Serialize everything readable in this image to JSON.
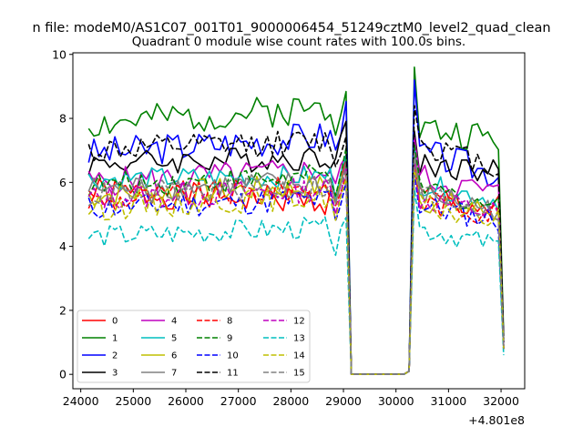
{
  "figure": {
    "suptitle": "n file: modeM0/AS1C07_001T01_9000006454_51249cztM0_level2_quad_clean",
    "offset_label": "+4.801e8"
  },
  "chart_data": {
    "type": "line",
    "title": "Quadrant 0 module wise count rates with 100.0s bins.",
    "xlabel": "",
    "ylabel": "",
    "xlim": [
      23850,
      32450
    ],
    "ylim": [
      -0.45,
      10.05
    ],
    "xticks": [
      24000,
      25000,
      26000,
      27000,
      28000,
      29000,
      30000,
      31000,
      32000
    ],
    "yticks": [
      0,
      2,
      4,
      6,
      8,
      10
    ],
    "x_offset": "+4.801e8",
    "bin_size_s": 100.0,
    "grid": false,
    "legend": {
      "placement": "lower-left",
      "columns": 4
    },
    "time_segments": [
      {
        "start": 24150,
        "end": 29050,
        "step": 100
      },
      {
        "start": 30350,
        "end": 32050,
        "step": 100
      }
    ],
    "gap_x": [
      29150,
      29250,
      30150,
      30250
    ],
    "gap_y": [
      0.0,
      0.0,
      0.0,
      0.1
    ],
    "series": [
      {
        "name": "0",
        "color": "#ff0000",
        "dash": "solid",
        "base1": 5.7,
        "base2": 5.6,
        "trend1": -0.3,
        "trend2": -0.5,
        "amp": 0.45,
        "peak1": 6.7,
        "peak2": 7.0,
        "end": 0.8,
        "seed": 1
      },
      {
        "name": "1",
        "color": "#008000",
        "dash": "solid",
        "base1": 7.8,
        "base2": 7.7,
        "trend1": 0.6,
        "trend2": -0.4,
        "amp": 0.5,
        "peak1": 8.9,
        "peak2": 9.6,
        "end": 1.2,
        "seed": 2
      },
      {
        "name": "2",
        "color": "#0000ff",
        "dash": "solid",
        "base1": 6.9,
        "base2": 7.0,
        "trend1": 0.6,
        "trend2": -0.8,
        "amp": 0.5,
        "peak1": 8.3,
        "peak2": 9.2,
        "end": 1.0,
        "seed": 3
      },
      {
        "name": "3",
        "color": "#000000",
        "dash": "solid",
        "base1": 6.6,
        "base2": 6.6,
        "trend1": 0.2,
        "trend2": -0.3,
        "amp": 0.4,
        "peak1": 7.9,
        "peak2": 7.6,
        "end": 1.0,
        "seed": 4
      },
      {
        "name": "4",
        "color": "#bf00bf",
        "dash": "solid",
        "base1": 6.0,
        "base2": 6.2,
        "trend1": 0.4,
        "trend2": -0.6,
        "amp": 0.45,
        "peak1": 7.0,
        "peak2": 7.4,
        "end": 0.9,
        "seed": 5
      },
      {
        "name": "5",
        "color": "#00bfbf",
        "dash": "solid",
        "base1": 6.1,
        "base2": 6.0,
        "trend1": 0.1,
        "trend2": -0.6,
        "amp": 0.35,
        "peak1": 6.8,
        "peak2": 7.1,
        "end": 0.8,
        "seed": 6
      },
      {
        "name": "6",
        "color": "#bfbf00",
        "dash": "solid",
        "base1": 5.6,
        "base2": 5.5,
        "trend1": 0.3,
        "trend2": -0.5,
        "amp": 0.4,
        "peak1": 6.6,
        "peak2": 6.8,
        "end": 0.8,
        "seed": 7
      },
      {
        "name": "7",
        "color": "#808080",
        "dash": "solid",
        "base1": 5.8,
        "base2": 5.7,
        "trend1": 0.2,
        "trend2": -0.6,
        "amp": 0.4,
        "peak1": 6.5,
        "peak2": 6.9,
        "end": 0.8,
        "seed": 8
      },
      {
        "name": "8",
        "color": "#ff0000",
        "dash": "dashed",
        "base1": 5.4,
        "base2": 5.4,
        "trend1": 0.5,
        "trend2": -0.4,
        "amp": 0.4,
        "peak1": 6.3,
        "peak2": 6.6,
        "end": 0.8,
        "seed": 9
      },
      {
        "name": "9",
        "color": "#008000",
        "dash": "dashed",
        "base1": 5.9,
        "base2": 5.9,
        "trend1": 0.3,
        "trend2": -0.7,
        "amp": 0.4,
        "peak1": 6.9,
        "peak2": 7.2,
        "end": 0.9,
        "seed": 10
      },
      {
        "name": "10",
        "color": "#0000ff",
        "dash": "dashed",
        "base1": 5.2,
        "base2": 5.3,
        "trend1": 0.3,
        "trend2": -0.5,
        "amp": 0.4,
        "peak1": 6.0,
        "peak2": 6.3,
        "end": 0.8,
        "seed": 11
      },
      {
        "name": "11",
        "color": "#000000",
        "dash": "dashed",
        "base1": 7.0,
        "base2": 7.3,
        "trend1": 0.3,
        "trend2": -0.9,
        "amp": 0.4,
        "peak1": 7.6,
        "peak2": 8.4,
        "end": 1.0,
        "seed": 12
      },
      {
        "name": "12",
        "color": "#bf00bf",
        "dash": "dashed",
        "base1": 5.5,
        "base2": 5.5,
        "trend1": 0.3,
        "trend2": -0.5,
        "amp": 0.4,
        "peak1": 6.4,
        "peak2": 6.7,
        "end": 0.8,
        "seed": 13
      },
      {
        "name": "13",
        "color": "#00bfbf",
        "dash": "dashed",
        "base1": 4.3,
        "base2": 4.6,
        "trend1": 0.3,
        "trend2": -0.6,
        "amp": 0.35,
        "peak1": 5.0,
        "peak2": 5.8,
        "end": 0.6,
        "seed": 14
      },
      {
        "name": "14",
        "color": "#bfbf00",
        "dash": "dashed",
        "base1": 5.2,
        "base2": 5.3,
        "trend1": 0.4,
        "trend2": -0.5,
        "amp": 0.4,
        "peak1": 6.0,
        "peak2": 6.4,
        "end": 0.8,
        "seed": 15
      },
      {
        "name": "15",
        "color": "#808080",
        "dash": "dashed",
        "base1": 5.6,
        "base2": 5.7,
        "trend1": 0.3,
        "trend2": -0.6,
        "amp": 0.4,
        "peak1": 6.4,
        "peak2": 6.9,
        "end": 0.8,
        "seed": 16
      }
    ]
  }
}
